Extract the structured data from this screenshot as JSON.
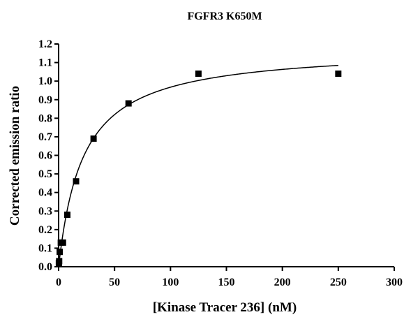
{
  "chart_data": {
    "type": "scatter",
    "title": "FGFR3 K650M",
    "xlabel": "[Kinase Tracer 236] (nM)",
    "ylabel": "Corrected emission ratio",
    "xlim": [
      0,
      300
    ],
    "ylim": [
      0.0,
      1.2
    ],
    "xticks": [
      0,
      50,
      100,
      150,
      200,
      250,
      300
    ],
    "yticks": [
      0.0,
      0.1,
      0.2,
      0.3,
      0.4,
      0.5,
      0.6,
      0.7,
      0.8,
      0.9,
      1.0,
      1.1,
      1.2
    ],
    "grid": false,
    "legend": "none",
    "series": [
      {
        "marker": "square",
        "x": [
          0.24,
          0.49,
          0.98,
          1.95,
          3.9,
          7.8,
          15.6,
          31.25,
          62.5,
          125,
          250
        ],
        "y": [
          0.02,
          0.03,
          0.08,
          0.13,
          0.13,
          0.28,
          0.46,
          0.69,
          0.88,
          1.04,
          1.04
        ]
      }
    ],
    "fit": {
      "model": "one-site saturation binding",
      "bmax": 1.18,
      "kd": 22,
      "x_range": [
        0,
        250
      ]
    }
  }
}
